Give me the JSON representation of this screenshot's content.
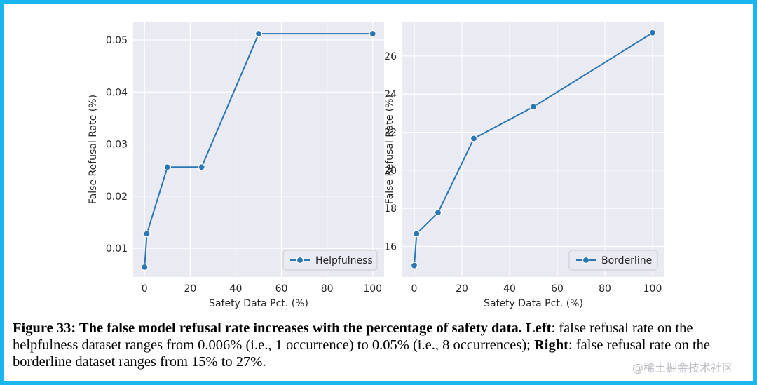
{
  "chart_data": [
    {
      "type": "line",
      "x": [
        0,
        1,
        10,
        25,
        50,
        100
      ],
      "series": [
        {
          "name": "Helpfulness",
          "values": [
            0.0064,
            0.0128,
            0.0256,
            0.0256,
            0.0512,
            0.0512
          ],
          "color": "#2a77b4"
        }
      ],
      "xlabel": "Safety Data Pct. (%)",
      "ylabel": "False Refusal Rate (%)",
      "xlim": [
        -5,
        105
      ],
      "ylim": [
        0.0045,
        0.0535
      ],
      "xticks": [
        0,
        20,
        40,
        60,
        80,
        100
      ],
      "xtick_labels": [
        "0",
        "20",
        "40",
        "60",
        "80",
        "100"
      ],
      "yticks": [
        0.01,
        0.02,
        0.03,
        0.04,
        0.05
      ],
      "ytick_labels": [
        "0.01",
        "0.02",
        "0.03",
        "0.04",
        "0.05"
      ],
      "legend": "bottom-right",
      "grid": true
    },
    {
      "type": "line",
      "x": [
        0,
        1,
        10,
        25,
        50,
        100
      ],
      "series": [
        {
          "name": "Borderline",
          "values": [
            15.0,
            16.67,
            17.78,
            21.67,
            23.33,
            27.22
          ],
          "color": "#2a77b4"
        }
      ],
      "xlabel": "Safety Data Pct. (%)",
      "ylabel": "False Refusal Rate (%)",
      "xlim": [
        -5,
        105
      ],
      "ylim": [
        14.4,
        27.8
      ],
      "xticks": [
        0,
        20,
        40,
        60,
        80,
        100
      ],
      "xtick_labels": [
        "0",
        "20",
        "40",
        "60",
        "80",
        "100"
      ],
      "yticks": [
        16,
        18,
        20,
        22,
        24,
        26
      ],
      "ytick_labels": [
        "16",
        "18",
        "20",
        "22",
        "24",
        "26"
      ],
      "legend": "bottom-right",
      "grid": true
    }
  ],
  "caption": {
    "label": "Figure 33: The false model refusal rate increases with the percentage of safety data.",
    "left_label": "Left",
    "left_text": ": false refusal rate on the helpfulness dataset ranges from 0.006% (i.e., 1 occurrence) to 0.05% (i.e., 8 occurrences);",
    "right_label": "Right",
    "right_text": ": false refusal rate on the borderline dataset ranges from 15% to 27%."
  },
  "watermark": "@稀土掘金技术社区"
}
